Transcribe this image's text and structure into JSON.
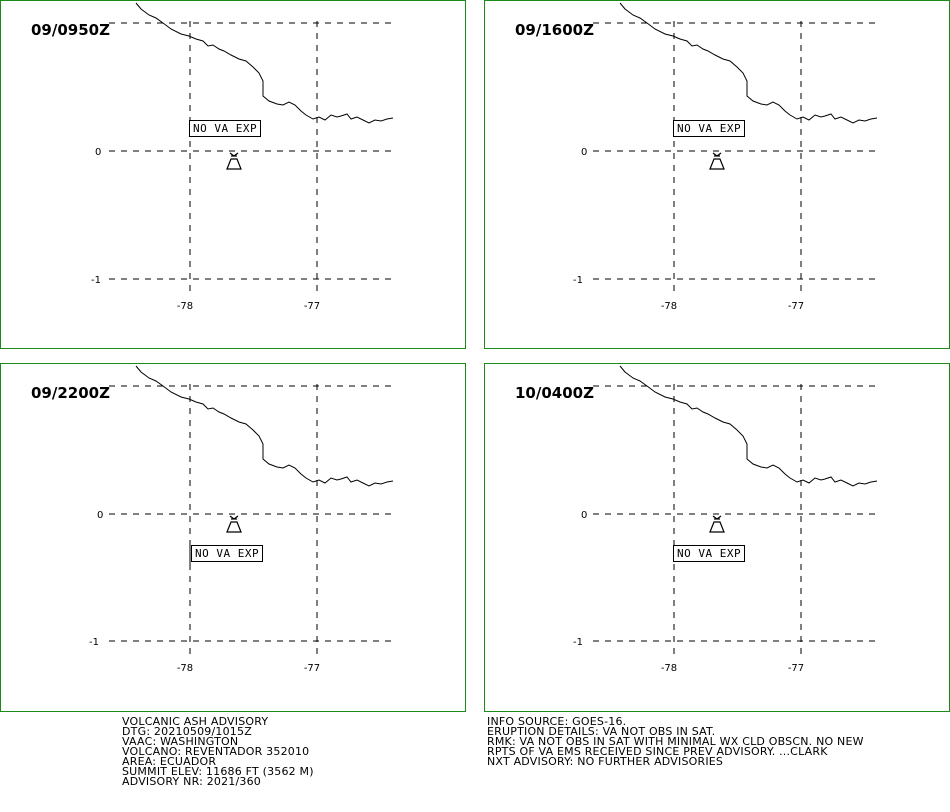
{
  "panels": [
    {
      "time": "09/0950Z",
      "label": "NO VA EXP",
      "label_side": "above"
    },
    {
      "time": "09/1600Z",
      "label": "NO VA EXP",
      "label_side": "above"
    },
    {
      "time": "09/2200Z",
      "label": "NO VA EXP",
      "label_side": "below"
    },
    {
      "time": "10/0400Z",
      "label": "NO VA EXP",
      "label_side": "below"
    }
  ],
  "axis": {
    "lat_ticks": [
      "0",
      "-1"
    ],
    "lon_ticks": [
      "-78",
      "-77"
    ]
  },
  "icons": {
    "volcano": "volcano-icon",
    "coastline": "coastline-line"
  },
  "colors": {
    "panel_border": "#1a8a1a"
  },
  "advisory_left": [
    "VOLCANIC ASH ADVISORY",
    "DTG: 20210509/1015Z",
    "VAAC: WASHINGTON",
    "VOLCANO: REVENTADOR 352010",
    "AREA: ECUADOR",
    "SUMMIT ELEV: 11686 FT (3562 M)",
    "ADVISORY NR: 2021/360"
  ],
  "advisory_right": [
    "INFO SOURCE: GOES-16.",
    "ERUPTION DETAILS: VA NOT OBS IN SAT.",
    "RMK: VA NOT OBS IN SAT WITH MINIMAL WX CLD OBSCN. NO NEW",
    "RPTS OF VA EMS RECEIVED SINCE PREV ADVISORY. ...CLARK",
    "NXT ADVISORY: NO FURTHER ADVISORIES"
  ]
}
